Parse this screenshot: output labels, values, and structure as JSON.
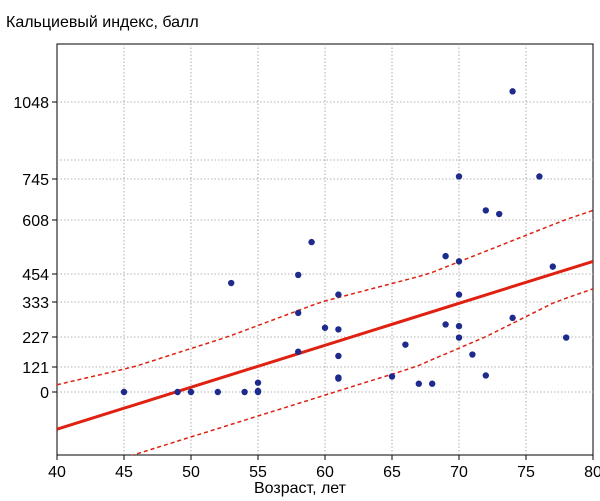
{
  "chart_data": {
    "type": "scatter",
    "ylabel": "Кальциевый индекс, балл",
    "xlabel": "Возраст, лет",
    "xlim": [
      40,
      80
    ],
    "x_ticks": [
      40,
      45,
      50,
      55,
      60,
      65,
      70,
      75,
      80
    ],
    "y_ticks": [
      0,
      121,
      227,
      333,
      454,
      608,
      745,
      1048
    ],
    "grid": true,
    "colors": {
      "points": "#1e2a8c",
      "fit": "#e02010",
      "ci": "#e02010"
    },
    "series": [
      {
        "points": [
          [
            45,
            0
          ],
          [
            49,
            0
          ],
          [
            50,
            0
          ],
          [
            52,
            0
          ],
          [
            54,
            0
          ],
          [
            55,
            0
          ],
          [
            55,
            5
          ],
          [
            55,
            45
          ],
          [
            53,
            415
          ],
          [
            58,
            175
          ],
          [
            58,
            300
          ],
          [
            58,
            450
          ],
          [
            59,
            545
          ],
          [
            60,
            255
          ],
          [
            61,
            250
          ],
          [
            61,
            160
          ],
          [
            61,
            365
          ],
          [
            61,
            70
          ],
          [
            61,
            65
          ],
          [
            65,
            75
          ],
          [
            66,
            200
          ],
          [
            67,
            40
          ],
          [
            68,
            40
          ],
          [
            69,
            505
          ],
          [
            69,
            265
          ],
          [
            70,
            490
          ],
          [
            70,
            755
          ],
          [
            70,
            365
          ],
          [
            70,
            260
          ],
          [
            70,
            225
          ],
          [
            71,
            165
          ],
          [
            72,
            640
          ],
          [
            72,
            80
          ],
          [
            73,
            628
          ],
          [
            74,
            285
          ],
          [
            74,
            1090
          ],
          [
            76,
            755
          ],
          [
            77,
            475
          ],
          [
            78,
            225
          ]
        ]
      }
    ],
    "fit_line": {
      "x": [
        40,
        80
      ],
      "y": [
        -180,
        490
      ]
    },
    "ci_upper": {
      "x": [
        40,
        80
      ],
      "y": [
        35,
        640
      ]
    },
    "ci_lower": {
      "x": [
        40,
        80
      ],
      "y": [
        -420,
        390
      ]
    }
  }
}
